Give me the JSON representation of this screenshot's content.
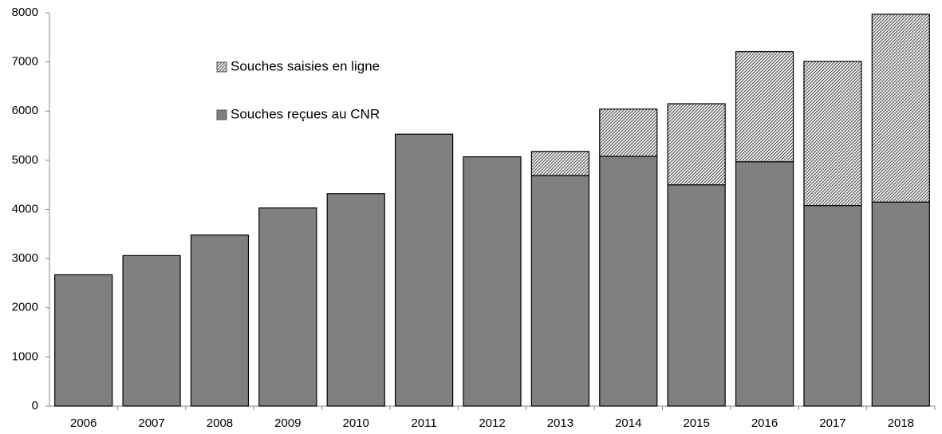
{
  "chart_data": {
    "type": "stacked-bar",
    "categories": [
      "2006",
      "2007",
      "2008",
      "2009",
      "2010",
      "2011",
      "2012",
      "2013",
      "2014",
      "2015",
      "2016",
      "2017",
      "2018"
    ],
    "series": [
      {
        "name": "Souches reçues au CNR",
        "color": "#808080",
        "hatch": false,
        "values": [
          2670,
          3060,
          3480,
          4030,
          4320,
          5530,
          5070,
          4690,
          5080,
          4500,
          4970,
          4080,
          4150
        ]
      },
      {
        "name": "Souches saisies en ligne",
        "color": "#808080",
        "hatch": true,
        "values": [
          0,
          0,
          0,
          0,
          0,
          0,
          0,
          490,
          960,
          1650,
          2240,
          2930,
          3820
        ]
      }
    ],
    "ylim": [
      0,
      8000
    ],
    "yticks": [
      0,
      1000,
      2000,
      3000,
      4000,
      5000,
      6000,
      7000,
      8000
    ],
    "grid": false
  }
}
